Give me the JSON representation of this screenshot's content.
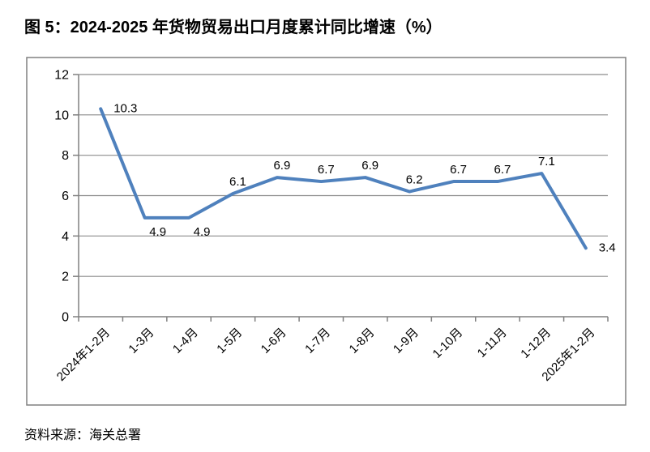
{
  "title": "图 5：2024-2025 年货物贸易出口月度累计同比增速（%）",
  "source_note": "资料来源：海关总署",
  "colors": {
    "line": "#4F81BD",
    "grid": "#8C8C8C",
    "axis": "#808080",
    "frame": "#808080",
    "text": "#000000",
    "background": "#FFFFFF"
  },
  "chart_data": {
    "type": "line",
    "title": "图 5：2024-2025 年货物贸易出口月度累计同比增速（%）",
    "categories": [
      "2024年1-2月",
      "1-3月",
      "1-4月",
      "1-5月",
      "1-6月",
      "1-7月",
      "1-8月",
      "1-9月",
      "1-10月",
      "1-11月",
      "1-12月",
      "2025年1-2月"
    ],
    "values": [
      10.3,
      4.9,
      4.9,
      6.1,
      6.9,
      6.7,
      6.9,
      6.2,
      6.7,
      6.7,
      7.1,
      3.4
    ],
    "xlabel": "",
    "ylabel": "",
    "ylim": [
      0,
      12
    ],
    "ytick_step": 2,
    "yticks": [
      0,
      2,
      4,
      6,
      8,
      10,
      12
    ],
    "grid": true,
    "legend": false,
    "x_label_rotation_deg": -45,
    "data_labels_shown": true,
    "label_placement": [
      "right",
      "below",
      "below",
      "above",
      "above",
      "above",
      "above",
      "above",
      "above",
      "above",
      "above",
      "right"
    ]
  }
}
